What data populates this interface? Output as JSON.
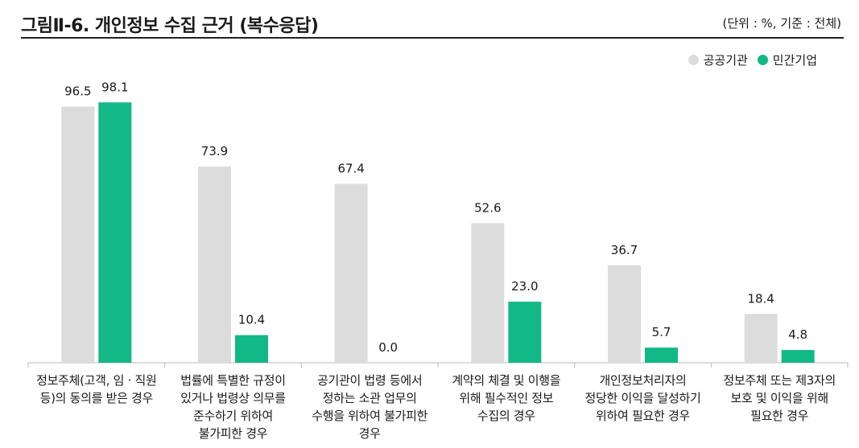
{
  "header": {
    "title": "그림Ⅱ-6.  개인정보 수집 근거 (복수응답)",
    "unit": "(단위 : %, 기준 : 전체)"
  },
  "colors": {
    "public": "#dcdcdc",
    "private": "#12b886"
  },
  "chart_data": {
    "type": "bar",
    "categories": [
      "정보주체(고객, 임 · 직원\n등)의 동의를 받은 경우",
      "법률에 특별한 규정이\n있거나 법령상 의무를\n준수하기 위하여\n불가피한 경우",
      "공기관이 법령 등에서\n정하는 소관 업무의\n수행을 위하여 불가피한\n경우",
      "계약의 체결 및 이행을\n위해 필수적인 정보\n수집의 경우",
      "개인정보처리자의\n정당한 이익을 달성하기\n위하여 필요한 경우",
      "정보주체 또는 제3자의\n보호 및 이익을 위해\n필요한 경우"
    ],
    "series": [
      {
        "name": "공공기관",
        "values": [
          96.5,
          73.9,
          67.4,
          52.6,
          36.7,
          18.4
        ],
        "labels": [
          "96.5",
          "73.9",
          "67.4",
          "52.6",
          "36.7",
          "18.4"
        ]
      },
      {
        "name": "민간기업",
        "values": [
          98.1,
          10.4,
          0.0,
          23.0,
          5.7,
          4.8
        ],
        "labels": [
          "98.1",
          "10.4",
          "0.0",
          "23.0",
          "5.7",
          "4.8"
        ]
      }
    ],
    "ylim": [
      0,
      100
    ],
    "legend_position": "top-right",
    "grid": false
  }
}
